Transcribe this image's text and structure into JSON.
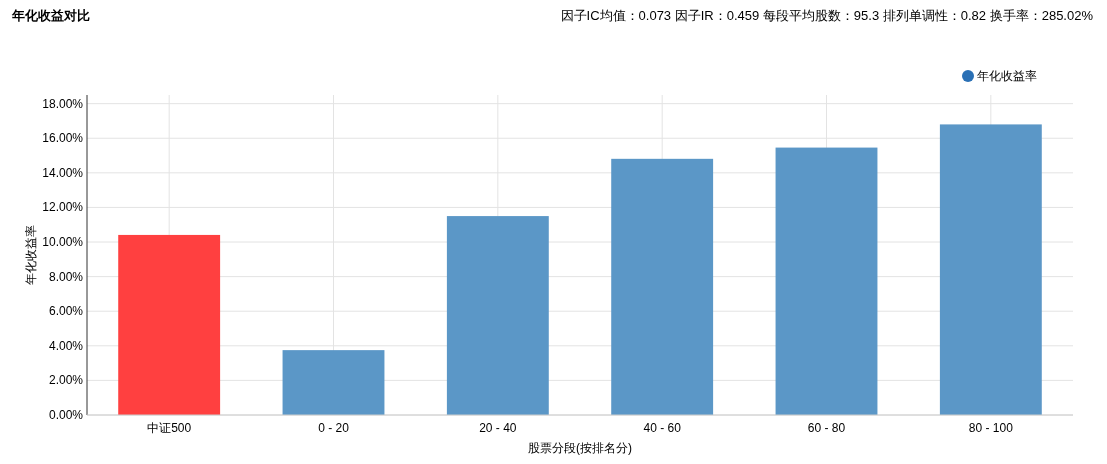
{
  "chart_data": {
    "type": "bar",
    "title": "年化收益对比",
    "subtitle": "因子IC均值：0.073  因子IR：0.459  每段平均股数：95.3  排列单调性：0.82  换手率：285.02%",
    "xlabel": "股票分段(按排名分)",
    "ylabel": "年化收益率",
    "categories": [
      "中证500",
      "0 - 20",
      "20 - 40",
      "40 - 60",
      "60 - 80",
      "80 - 100"
    ],
    "series": [
      {
        "name": "年化收益率",
        "color": "#2a70b5",
        "colors": [
          "#ff4040",
          "#5b97c7",
          "#5b97c7",
          "#5b97c7",
          "#5b97c7",
          "#5b97c7"
        ],
        "values": [
          10.41,
          3.75,
          11.5,
          14.81,
          15.46,
          16.8
        ]
      }
    ],
    "ylim": [
      0,
      18.5
    ],
    "yticks": [
      {
        "value": 0,
        "label": "0.00%"
      },
      {
        "value": 2,
        "label": "2.00%"
      },
      {
        "value": 4,
        "label": "4.00%"
      },
      {
        "value": 6,
        "label": "6.00%"
      },
      {
        "value": 8,
        "label": "8.00%"
      },
      {
        "value": 10,
        "label": "10.00%"
      },
      {
        "value": 12,
        "label": "12.00%"
      },
      {
        "value": 14,
        "label": "14.00%"
      },
      {
        "value": 16,
        "label": "16.00%"
      },
      {
        "value": 18,
        "label": "18.00%"
      }
    ],
    "grid": true,
    "legend": "top right"
  }
}
